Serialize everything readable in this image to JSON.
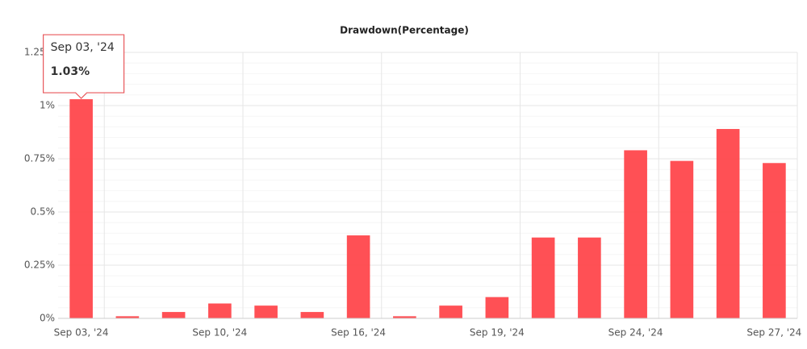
{
  "chart_data": {
    "type": "bar",
    "title": "Drawdown(Percentage)",
    "categories": [
      "Sep 03, '24",
      null,
      null,
      "Sep 10, '24",
      null,
      null,
      "Sep 16, '24",
      null,
      null,
      "Sep 19, '24",
      null,
      null,
      "Sep 24, '24",
      null,
      null,
      "Sep 27, '24"
    ],
    "values": [
      1.03,
      0.01,
      0.03,
      0.07,
      0.06,
      0.03,
      0.39,
      0.01,
      0.06,
      0.1,
      0.38,
      0.38,
      0.79,
      0.74,
      0.89,
      0.73
    ],
    "color": "#ff474c",
    "ylim": [
      0,
      1.25
    ],
    "yticks": [
      {
        "value": 0,
        "label": "0%"
      },
      {
        "value": 0.25,
        "label": "0.25%"
      },
      {
        "value": 0.5,
        "label": "0.5%"
      },
      {
        "value": 0.75,
        "label": "0.75%"
      },
      {
        "value": 1,
        "label": "1%"
      },
      {
        "value": 1.25,
        "label": "1.25%"
      }
    ],
    "grid": true,
    "tooltip": "1.03%"
  }
}
